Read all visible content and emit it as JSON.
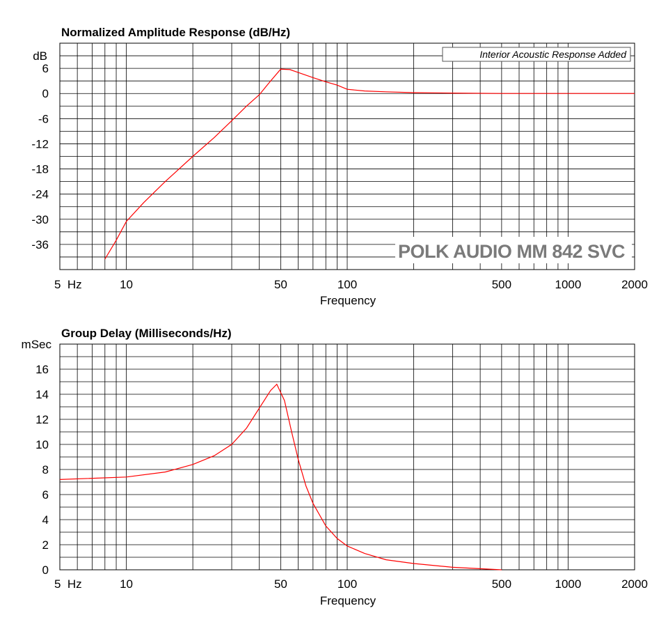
{
  "chart_data": [
    {
      "type": "line",
      "title": "Normalized Amplitude Response (dB/Hz)",
      "ylabel": "dB",
      "xlabel": "Frequency",
      "x_scale": "log",
      "xlim": [
        5,
        2000
      ],
      "ylim": [
        -42,
        12
      ],
      "x_ticks": [
        5,
        10,
        50,
        100,
        500,
        1000,
        2000
      ],
      "x_tick_labels": [
        "5  Hz",
        "10",
        "50",
        "100",
        "500",
        "1000",
        "2000"
      ],
      "y_ticks": [
        6,
        0,
        -6,
        -12,
        -18,
        -24,
        -30,
        -36
      ],
      "y_tick_labels": [
        "6",
        "0",
        "-6",
        "-12",
        "-18",
        "-24",
        "-30",
        "-36"
      ],
      "grid": true,
      "annotation": "Interior Acoustic Response Added",
      "watermark": "POLK AUDIO MM 842 SVC",
      "line_color": "#ff0000",
      "series": [
        {
          "x": [
            8,
            9,
            10,
            12,
            15,
            20,
            25,
            30,
            35,
            40,
            45,
            50,
            55,
            60,
            70,
            80,
            90,
            100,
            120,
            150,
            200,
            300,
            500,
            1000,
            2000
          ],
          "y": [
            -39.5,
            -35,
            -30.5,
            -26,
            -21,
            -15,
            -10.5,
            -6.5,
            -3,
            -0.3,
            3,
            5.8,
            5.7,
            5.0,
            3.8,
            2.8,
            2.0,
            1.0,
            0.6,
            0.4,
            0.2,
            0.1,
            0.0,
            0.0,
            0.0
          ]
        }
      ]
    },
    {
      "type": "line",
      "title": "Group Delay (Milliseconds/Hz)",
      "ylabel": "mSec",
      "xlabel": "Frequency",
      "x_scale": "log",
      "xlim": [
        5,
        2000
      ],
      "ylim": [
        0,
        18
      ],
      "x_ticks": [
        5,
        10,
        50,
        100,
        500,
        1000,
        2000
      ],
      "x_tick_labels": [
        "5  Hz",
        "10",
        "50",
        "100",
        "500",
        "1000",
        "2000"
      ],
      "y_ticks": [
        16,
        14,
        12,
        10,
        8,
        6,
        4,
        2,
        0
      ],
      "y_tick_labels": [
        "16",
        "14",
        "12",
        "10",
        "8",
        "6",
        "4",
        "2",
        "0"
      ],
      "grid": true,
      "line_color": "#ff0000",
      "series": [
        {
          "x": [
            5,
            10,
            15,
            20,
            25,
            30,
            35,
            40,
            45,
            48,
            52,
            56,
            60,
            65,
            70,
            80,
            90,
            100,
            120,
            150,
            200,
            300,
            500
          ],
          "y": [
            7.2,
            7.4,
            7.8,
            8.4,
            9.1,
            10.0,
            11.3,
            12.9,
            14.3,
            14.8,
            13.5,
            11.0,
            8.8,
            6.7,
            5.3,
            3.5,
            2.5,
            1.9,
            1.3,
            0.8,
            0.5,
            0.2,
            0.0
          ]
        }
      ]
    }
  ]
}
